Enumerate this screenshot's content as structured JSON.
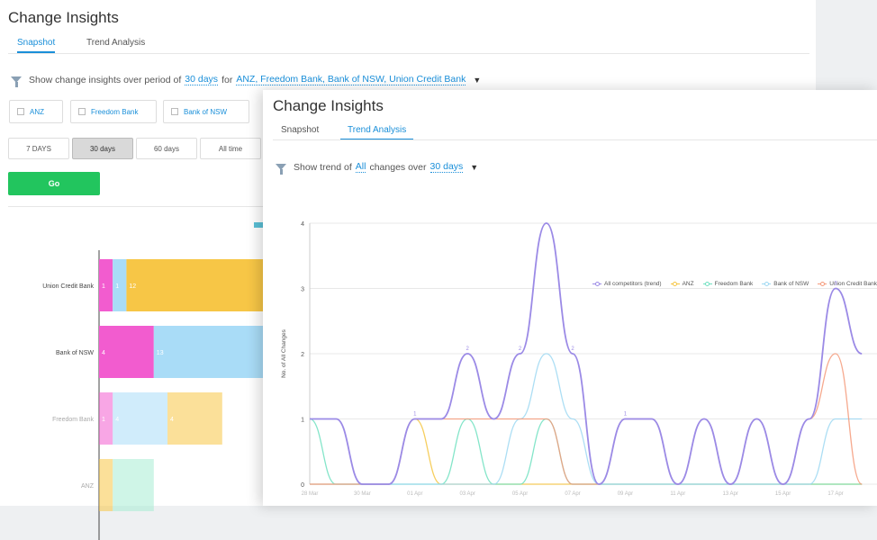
{
  "back_panel": {
    "title": "Change Insights",
    "tabs": [
      {
        "label": "Snapshot",
        "active": true
      },
      {
        "label": "Trend Analysis",
        "active": false
      }
    ],
    "filter": {
      "prefix": "Show change insights over period of",
      "period": "30 days",
      "for_word": "for",
      "banks": "ANZ, Freedom Bank, Bank of NSW, Union Credit Bank"
    },
    "bank_chips": [
      "ANZ",
      "Freedom Bank",
      "Bank of NSW"
    ],
    "period_buttons": [
      {
        "label": "7 DAYS",
        "selected": false
      },
      {
        "label": "30 days",
        "selected": true
      },
      {
        "label": "60 days",
        "selected": false
      },
      {
        "label": "All time",
        "selected": false
      }
    ],
    "go_label": "Go"
  },
  "front_panel": {
    "title": "Change Insights",
    "tabs": [
      {
        "label": "Snapshot",
        "active": false
      },
      {
        "label": "Trend Analysis",
        "active": true
      }
    ],
    "filter": {
      "prefix": "Show trend of",
      "type": "All",
      "middle": "changes over",
      "period": "30 days"
    }
  },
  "colors": {
    "accent": "#1a8fd9",
    "go": "#22c55e",
    "all_competitors": "#9b8ae6",
    "anz": "#f5c542",
    "freedom_bank": "#6fe0c0",
    "bank_of_nsw": "#9dd8f2",
    "union_credit": "#f59a7a",
    "bar_pink": "#f25ccf",
    "bar_blue": "#a9dcf7",
    "bar_yellow": "#f7c646",
    "bar_green": "#a8ecd4"
  },
  "chart_data": [
    {
      "type": "bar",
      "orientation": "horizontal",
      "stacked": true,
      "categories": [
        "Union Credit Bank",
        "Bank of NSW",
        "Freedom Bank",
        "ANZ"
      ],
      "series": [
        {
          "color": "bar_pink",
          "values": [
            1,
            4,
            1,
            0
          ]
        },
        {
          "color": "bar_blue",
          "values": [
            1,
            13,
            4,
            0
          ]
        },
        {
          "color": "bar_yellow",
          "values": [
            12,
            null,
            4,
            1
          ]
        },
        {
          "color": "bar_green",
          "values": [
            0,
            0,
            0,
            3
          ]
        }
      ],
      "segment_labels": [
        [
          "1",
          "1",
          "12"
        ],
        [
          "4",
          "13"
        ],
        [
          "1",
          "4",
          "4"
        ],
        [
          "",
          ""
        ]
      ],
      "grid": false
    },
    {
      "type": "line",
      "smooth": true,
      "ylabel": "No. of All Changes",
      "ylim": [
        0,
        4
      ],
      "yticks": [
        "0",
        "1",
        "2",
        "3",
        "4"
      ],
      "grid": true,
      "legend_position": "top-right",
      "x": [
        "28 Mar",
        "29 Mar",
        "30 Mar",
        "31 Mar",
        "01 Apr",
        "02 Apr",
        "03 Apr",
        "04 Apr",
        "05 Apr",
        "06 Apr",
        "07 Apr",
        "08 Apr",
        "09 Apr",
        "10 Apr",
        "11 Apr",
        "12 Apr",
        "13 Apr",
        "14 Apr",
        "15 Apr",
        "16 Apr",
        "17 Apr",
        "18 Apr"
      ],
      "xtick_labels": [
        "28 Mar",
        "30 Mar",
        "01 Apr",
        "03 Apr",
        "05 Apr",
        "07 Apr",
        "09 Apr",
        "11 Apr",
        "13 Apr",
        "15 Apr",
        "17 Apr"
      ],
      "series": [
        {
          "name": "All competitors (trend)",
          "color": "all_competitors",
          "values": [
            1,
            1,
            0,
            0,
            1,
            1,
            2,
            1,
            2,
            4,
            2,
            0,
            1,
            1,
            0,
            1,
            0,
            1,
            0,
            1,
            3,
            2
          ],
          "data_labels": {
            "4": "1",
            "6": "2",
            "8": "2",
            "10": "2",
            "12": "1",
            "20": "3"
          }
        },
        {
          "name": "ANZ",
          "color": "anz",
          "values": [
            0,
            0,
            0,
            0,
            1,
            0,
            0,
            0,
            0,
            0,
            0,
            0,
            0,
            0,
            0,
            0,
            0,
            0,
            0,
            0,
            0,
            0
          ]
        },
        {
          "name": "Freedom Bank",
          "color": "freedom_bank",
          "values": [
            1,
            0,
            0,
            0,
            0,
            0,
            1,
            0,
            0,
            1,
            0,
            0,
            0,
            0,
            0,
            0,
            0,
            0,
            0,
            0,
            0,
            0
          ]
        },
        {
          "name": "Bank of NSW",
          "color": "bank_of_nsw",
          "values": [
            0,
            0,
            0,
            0,
            0,
            0,
            0,
            0,
            1,
            2,
            1,
            0,
            0,
            0,
            0,
            0,
            0,
            0,
            0,
            0,
            1,
            1
          ]
        },
        {
          "name": "Union Credit Bank",
          "color": "union_credit",
          "values": [
            0,
            0,
            0,
            0,
            1,
            1,
            1,
            1,
            1,
            1,
            0,
            0,
            1,
            1,
            0,
            1,
            0,
            1,
            0,
            1,
            2,
            0
          ]
        }
      ]
    }
  ]
}
